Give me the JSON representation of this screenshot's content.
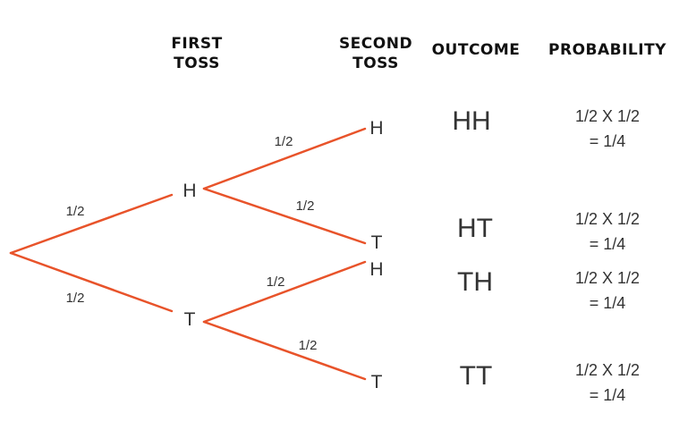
{
  "headers": {
    "first_toss": [
      "FIRST",
      "TOSS"
    ],
    "second_toss": [
      "SECOND",
      "TOSS"
    ],
    "outcome": "OUTCOME",
    "probability": "PROBABILITY"
  },
  "colors": {
    "branch": "#e8532a",
    "text": "#333333"
  },
  "tree": {
    "first_level": [
      {
        "label": "H",
        "branch_prob": "1/2"
      },
      {
        "label": "T",
        "branch_prob": "1/2"
      }
    ],
    "second_level": [
      {
        "parent": "H",
        "label": "H",
        "branch_prob": "1/2"
      },
      {
        "parent": "H",
        "label": "T",
        "branch_prob": "1/2"
      },
      {
        "parent": "T",
        "label": "H",
        "branch_prob": "1/2"
      },
      {
        "parent": "T",
        "label": "T",
        "branch_prob": "1/2"
      }
    ]
  },
  "outcomes": [
    {
      "outcome": "HH",
      "calc": "1/2 X 1/2",
      "result": "= 1/4"
    },
    {
      "outcome": "HT",
      "calc": "1/2 X 1/2",
      "result": "= 1/4"
    },
    {
      "outcome": "TH",
      "calc": "1/2 X 1/2",
      "result": "= 1/4"
    },
    {
      "outcome": "TT",
      "calc": "1/2 X 1/2",
      "result": "= 1/4"
    }
  ]
}
